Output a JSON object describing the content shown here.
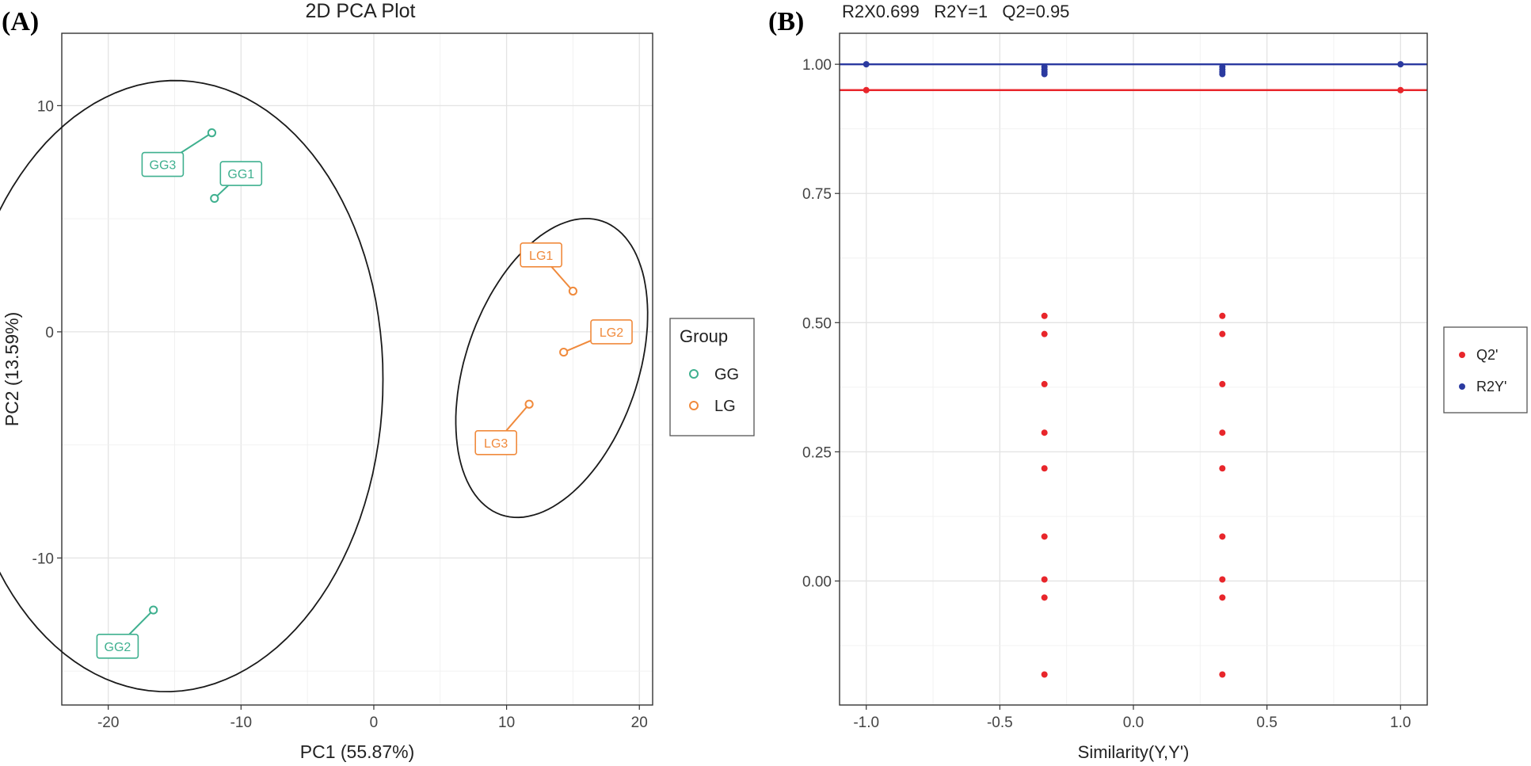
{
  "chart_data": [
    {
      "panel_label": "(A)",
      "type": "scatter",
      "title": "2D PCA Plot",
      "xlabel": "PC1 (55.87%)",
      "ylabel": "PC2 (13.59%)",
      "xlim": [
        -23.5,
        21
      ],
      "ylim": [
        -16.5,
        13.2
      ],
      "xticks": [
        -20,
        -10,
        0,
        10,
        20
      ],
      "xtick_labels": [
        "-20",
        "-10",
        "0",
        "10",
        "20"
      ],
      "yticks": [
        -10,
        0,
        10
      ],
      "ytick_labels": [
        "-10",
        "0",
        "10"
      ],
      "grid": true,
      "legend": {
        "title": "Group",
        "position": "right",
        "entries": [
          {
            "label": "GG",
            "color": "#3fb08f"
          },
          {
            "label": "LG",
            "color": "#f08a3c"
          }
        ]
      },
      "series": [
        {
          "name": "GG",
          "color": "#3fb08f",
          "points": [
            {
              "label": "GG1",
              "x": -12.0,
              "y": 5.9,
              "label_x": -10.0,
              "label_y": 7.0
            },
            {
              "label": "GG2",
              "x": -16.6,
              "y": -12.3,
              "label_x": -19.3,
              "label_y": -13.9
            },
            {
              "label": "GG3",
              "x": -12.2,
              "y": 8.8,
              "label_x": -15.9,
              "label_y": 7.4
            }
          ],
          "ellipse": {
            "cx": -15.3,
            "cy": -2.4,
            "rx": 16.0,
            "ry": 13.5,
            "angle_deg": 3.6
          }
        },
        {
          "name": "LG",
          "color": "#f08a3c",
          "points": [
            {
              "label": "LG1",
              "x": 15.0,
              "y": 1.8,
              "label_x": 12.6,
              "label_y": 3.4
            },
            {
              "label": "LG2",
              "x": 14.3,
              "y": -0.9,
              "label_x": 17.9,
              "label_y": 0.0
            },
            {
              "label": "LG3",
              "x": 11.7,
              "y": -3.2,
              "label_x": 9.2,
              "label_y": -4.9
            }
          ],
          "ellipse": {
            "cx": 13.4,
            "cy": -1.6,
            "rx": 8.1,
            "ry": 5.5,
            "angle_deg": 38
          }
        }
      ]
    },
    {
      "panel_label": "(B)",
      "type": "scatter",
      "title": "R2X0.699   R2Y=1   Q2=0.95",
      "xlabel": "Similarity(Y,Y')",
      "ylabel": "",
      "xlim": [
        -1.1,
        1.1
      ],
      "ylim": [
        -0.24,
        1.06
      ],
      "xticks": [
        -1.0,
        -0.5,
        0.0,
        0.5,
        1.0
      ],
      "xtick_labels": [
        "-1.0",
        "-0.5",
        "0.0",
        "0.5",
        "1.0"
      ],
      "yticks": [
        0.0,
        0.25,
        0.5,
        0.75,
        1.0
      ],
      "ytick_labels": [
        "0.00",
        "0.25",
        "0.50",
        "0.75",
        "1.00"
      ],
      "grid": true,
      "legend": {
        "title": "",
        "position": "right",
        "entries": [
          {
            "label": "Q2'",
            "color": "#e8262b"
          },
          {
            "label": "R2Y'",
            "color": "#2b3aa0"
          }
        ]
      },
      "series": [
        {
          "name": "Q2'",
          "color": "#e8262b",
          "reference_line_y": 0.95,
          "points": [
            {
              "x": -1.0,
              "y": 0.95
            },
            {
              "x": 1.0,
              "y": 0.95
            },
            {
              "x": -0.333,
              "y": 0.513
            },
            {
              "x": -0.333,
              "y": 0.478
            },
            {
              "x": -0.333,
              "y": 0.381
            },
            {
              "x": -0.333,
              "y": 0.287
            },
            {
              "x": -0.333,
              "y": 0.218
            },
            {
              "x": -0.333,
              "y": 0.086
            },
            {
              "x": -0.333,
              "y": 0.003
            },
            {
              "x": -0.333,
              "y": -0.032
            },
            {
              "x": -0.333,
              "y": -0.181
            },
            {
              "x": 0.333,
              "y": 0.513
            },
            {
              "x": 0.333,
              "y": 0.478
            },
            {
              "x": 0.333,
              "y": 0.381
            },
            {
              "x": 0.333,
              "y": 0.287
            },
            {
              "x": 0.333,
              "y": 0.218
            },
            {
              "x": 0.333,
              "y": 0.086
            },
            {
              "x": 0.333,
              "y": 0.003
            },
            {
              "x": 0.333,
              "y": -0.032
            },
            {
              "x": 0.333,
              "y": -0.181
            }
          ]
        },
        {
          "name": "R2Y'",
          "color": "#2b3aa0",
          "reference_line_y": 1.0,
          "points": [
            {
              "x": -1.0,
              "y": 1.0
            },
            {
              "x": 1.0,
              "y": 1.0
            },
            {
              "x": -0.333,
              "y": 0.995
            },
            {
              "x": -0.333,
              "y": 0.99
            },
            {
              "x": -0.333,
              "y": 0.985
            },
            {
              "x": -0.333,
              "y": 0.981
            },
            {
              "x": 0.333,
              "y": 0.995
            },
            {
              "x": 0.333,
              "y": 0.99
            },
            {
              "x": 0.333,
              "y": 0.985
            },
            {
              "x": 0.333,
              "y": 0.981
            }
          ]
        }
      ]
    }
  ]
}
